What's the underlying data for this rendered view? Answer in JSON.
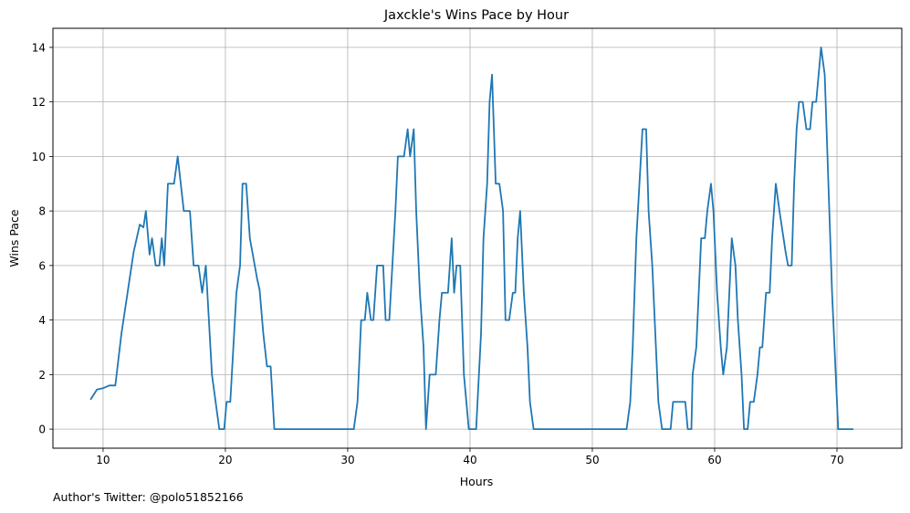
{
  "chart_data": {
    "type": "line",
    "title": "Jaxckle's Wins Pace by Hour",
    "xlabel": "Hours",
    "ylabel": "Wins Pace",
    "xlim": [
      5.9,
      75.3
    ],
    "ylim": [
      -0.7,
      14.7
    ],
    "xticks": [
      10,
      20,
      30,
      40,
      50,
      60,
      70
    ],
    "yticks": [
      0,
      2,
      4,
      6,
      8,
      10,
      12,
      14
    ],
    "grid": true,
    "line_color": "#1f77b4",
    "series": [
      {
        "points": [
          [
            9.0,
            1.1
          ],
          [
            9.5,
            1.45
          ],
          [
            10.0,
            1.5
          ],
          [
            10.5,
            1.6
          ],
          [
            11.0,
            1.6
          ],
          [
            11.5,
            3.5
          ],
          [
            12.0,
            5.0
          ],
          [
            12.5,
            6.5
          ],
          [
            13.0,
            7.5
          ],
          [
            13.3,
            7.4
          ],
          [
            13.5,
            8.0
          ],
          [
            13.8,
            6.4
          ],
          [
            14.0,
            7.0
          ],
          [
            14.3,
            6.0
          ],
          [
            14.6,
            6.0
          ],
          [
            14.8,
            7.0
          ],
          [
            15.0,
            6.0
          ],
          [
            15.3,
            9.0
          ],
          [
            15.8,
            9.0
          ],
          [
            16.1,
            10.0
          ],
          [
            16.6,
            8.0
          ],
          [
            17.1,
            8.0
          ],
          [
            17.4,
            6.0
          ],
          [
            17.8,
            6.0
          ],
          [
            18.1,
            5.0
          ],
          [
            18.4,
            6.0
          ],
          [
            18.9,
            2.0
          ],
          [
            19.5,
            0.0
          ],
          [
            19.9,
            0.0
          ],
          [
            20.1,
            1.0
          ],
          [
            20.4,
            1.0
          ],
          [
            20.9,
            5.0
          ],
          [
            21.2,
            6.0
          ],
          [
            21.4,
            9.0
          ],
          [
            21.7,
            9.0
          ],
          [
            22.0,
            7.0
          ],
          [
            22.6,
            5.5
          ],
          [
            22.8,
            5.1
          ],
          [
            23.1,
            3.5
          ],
          [
            23.4,
            2.3
          ],
          [
            23.7,
            2.3
          ],
          [
            24.0,
            0.0
          ],
          [
            30.0,
            0.0
          ],
          [
            30.5,
            0.0
          ],
          [
            30.8,
            1.0
          ],
          [
            31.1,
            4.0
          ],
          [
            31.4,
            4.0
          ],
          [
            31.6,
            5.0
          ],
          [
            31.9,
            4.0
          ],
          [
            32.1,
            4.0
          ],
          [
            32.4,
            6.0
          ],
          [
            32.9,
            6.0
          ],
          [
            33.1,
            4.0
          ],
          [
            33.4,
            4.0
          ],
          [
            33.9,
            8.0
          ],
          [
            34.1,
            10.0
          ],
          [
            34.6,
            10.0
          ],
          [
            34.9,
            11.0
          ],
          [
            35.1,
            10.0
          ],
          [
            35.4,
            11.0
          ],
          [
            35.6,
            8.0
          ],
          [
            35.9,
            5.0
          ],
          [
            36.2,
            3.0
          ],
          [
            36.4,
            0.0
          ],
          [
            36.7,
            2.0
          ],
          [
            37.2,
            2.0
          ],
          [
            37.5,
            4.0
          ],
          [
            37.7,
            5.0
          ],
          [
            38.2,
            5.0
          ],
          [
            38.5,
            7.0
          ],
          [
            38.7,
            5.0
          ],
          [
            38.9,
            6.0
          ],
          [
            39.2,
            6.0
          ],
          [
            39.5,
            2.0
          ],
          [
            39.9,
            0.0
          ],
          [
            40.5,
            0.0
          ],
          [
            40.9,
            3.5
          ],
          [
            41.1,
            7.0
          ],
          [
            41.4,
            9.0
          ],
          [
            41.6,
            12.0
          ],
          [
            41.8,
            13.0
          ],
          [
            42.1,
            9.0
          ],
          [
            42.4,
            9.0
          ],
          [
            42.7,
            8.0
          ],
          [
            42.9,
            4.0
          ],
          [
            43.2,
            4.0
          ],
          [
            43.5,
            5.0
          ],
          [
            43.7,
            5.0
          ],
          [
            43.9,
            7.0
          ],
          [
            44.1,
            8.0
          ],
          [
            44.4,
            5.0
          ],
          [
            44.7,
            3.0
          ],
          [
            44.9,
            1.0
          ],
          [
            45.2,
            0.0
          ],
          [
            52.8,
            0.0
          ],
          [
            53.1,
            1.0
          ],
          [
            53.3,
            3.0
          ],
          [
            53.6,
            7.0
          ],
          [
            54.1,
            11.0
          ],
          [
            54.4,
            11.0
          ],
          [
            54.6,
            8.0
          ],
          [
            54.9,
            6.0
          ],
          [
            55.2,
            3.0
          ],
          [
            55.4,
            1.0
          ],
          [
            55.7,
            0.0
          ],
          [
            56.4,
            0.0
          ],
          [
            56.6,
            1.0
          ],
          [
            57.1,
            1.0
          ],
          [
            57.6,
            1.0
          ],
          [
            57.8,
            0.0
          ],
          [
            58.1,
            0.0
          ],
          [
            58.2,
            2.0
          ],
          [
            58.5,
            3.0
          ],
          [
            58.7,
            5.0
          ],
          [
            58.9,
            7.0
          ],
          [
            59.2,
            7.0
          ],
          [
            59.4,
            8.0
          ],
          [
            59.7,
            9.0
          ],
          [
            59.9,
            8.0
          ],
          [
            60.2,
            5.0
          ],
          [
            60.5,
            3.0
          ],
          [
            60.7,
            2.0
          ],
          [
            61.0,
            3.0
          ],
          [
            61.2,
            5.0
          ],
          [
            61.4,
            7.0
          ],
          [
            61.7,
            6.0
          ],
          [
            61.9,
            4.0
          ],
          [
            62.2,
            2.0
          ],
          [
            62.4,
            0.0
          ],
          [
            62.7,
            0.0
          ],
          [
            62.9,
            1.0
          ],
          [
            63.2,
            1.0
          ],
          [
            63.5,
            2.0
          ],
          [
            63.7,
            3.0
          ],
          [
            63.9,
            3.0
          ],
          [
            64.2,
            5.0
          ],
          [
            64.5,
            5.0
          ],
          [
            64.7,
            7.0
          ],
          [
            65.0,
            9.0
          ],
          [
            65.3,
            8.0
          ],
          [
            65.8,
            6.5
          ],
          [
            66.0,
            6.0
          ],
          [
            66.3,
            6.0
          ],
          [
            66.5,
            9.0
          ],
          [
            66.7,
            11.0
          ],
          [
            66.9,
            12.0
          ],
          [
            67.2,
            12.0
          ],
          [
            67.5,
            11.0
          ],
          [
            67.8,
            11.0
          ],
          [
            68.0,
            12.0
          ],
          [
            68.3,
            12.0
          ],
          [
            68.5,
            13.0
          ],
          [
            68.7,
            14.0
          ],
          [
            69.0,
            13.0
          ],
          [
            69.3,
            9.0
          ],
          [
            69.6,
            5.0
          ],
          [
            69.9,
            2.0
          ],
          [
            70.1,
            0.0
          ],
          [
            71.3,
            0.0
          ]
        ]
      }
    ]
  },
  "footer": {
    "credit": "Author's Twitter: @polo51852166"
  }
}
